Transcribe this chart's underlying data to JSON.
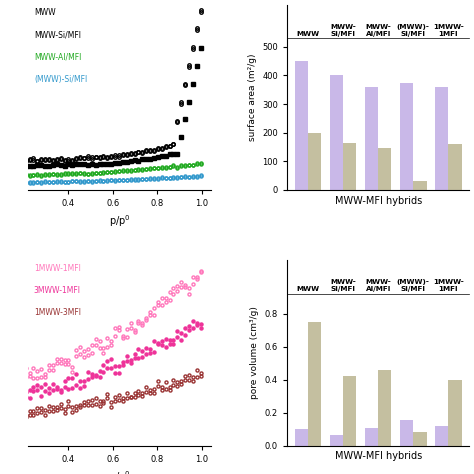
{
  "surface_area": {
    "purple_values": [
      450,
      400,
      360,
      375,
      360
    ],
    "tan_values": [
      200,
      165,
      145,
      30,
      160
    ],
    "ylabel": "surface area (m²/g)",
    "xlabel": "MWW-MFI hybrids",
    "ylim": [
      0,
      530
    ],
    "yticks": [
      0,
      100,
      200,
      300,
      400,
      500
    ]
  },
  "pore_volume": {
    "purple_values": [
      0.1,
      0.065,
      0.105,
      0.155,
      0.12
    ],
    "tan_values": [
      0.75,
      0.42,
      0.46,
      0.08,
      0.4
    ],
    "ylabel": "pore volume (cm³/g)",
    "xlabel": "MWW-MFI hybrids",
    "ylim": [
      0,
      0.92
    ],
    "yticks": [
      0.0,
      0.2,
      0.4,
      0.6,
      0.8
    ]
  },
  "bar_color_purple": "#C9B8E8",
  "bar_color_tan": "#C4BFA0",
  "cat_labels_top": [
    "MWW",
    "MWW-\nSi/MFI",
    "MWW-\nAl/MFI",
    "(MWW)-\nSi/MFI",
    "1MWW-\n1MFI"
  ],
  "cat_labels_bottom": [
    "MWW",
    "MWW-\nSi/MFI",
    "MWW-\nAl/MFI",
    "(MWW)-\nSi/MFI",
    "1MWW-\n1MFI"
  ]
}
